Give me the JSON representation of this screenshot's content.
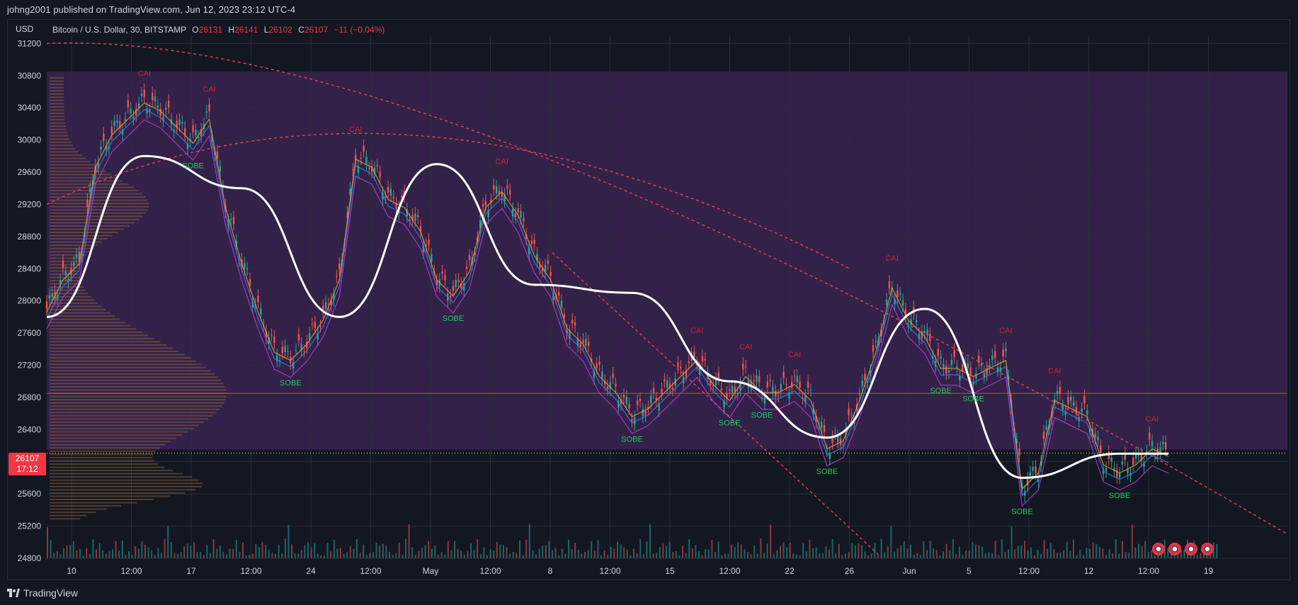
{
  "header": {
    "published": "johng2001 published on TradingView.com, Jun 12, 2023 23:12 UTC-4"
  },
  "legend": {
    "currency": "USD",
    "symbol": "Bitcoin / U.S. Dollar, 30, BITSTAMP",
    "o_label": "O",
    "o_value": "26131",
    "h_label": "H",
    "h_value": "26141",
    "l_label": "L",
    "l_value": "26102",
    "c_label": "C",
    "c_value": "26107",
    "change": "−11 (−0.04%)"
  },
  "price_tag": {
    "price": "26107",
    "countdown": "17:12"
  },
  "footer": {
    "brand": "TradingView"
  },
  "colors": {
    "background": "#131722",
    "zone": "#3a2350",
    "up": "#26a69a",
    "down": "#ef5350",
    "buy_label": "#22c55e",
    "sell_label": "#d21f3c",
    "curve": "#ffffff",
    "arc": "#e0404d",
    "profile": "#9c6b3c"
  },
  "icons": [
    "us-flag-event-icon",
    "us-flag-event-icon",
    "us-flag-event-icon",
    "us-flag-event-icon"
  ],
  "chart_data": {
    "type": "line",
    "title": "Bitcoin / U.S. Dollar, 30, BITSTAMP",
    "x_labels": [
      "10",
      "12:00",
      "17",
      "12:00",
      "24",
      "12:00",
      "May",
      "12:00",
      "8",
      "12:00",
      "15",
      "12:00",
      "22",
      "26",
      "Jun",
      "5",
      "12:00",
      "12",
      "12:00",
      "19"
    ],
    "y_ticks": [
      24800,
      25200,
      25600,
      26000,
      26400,
      26800,
      27200,
      27600,
      28000,
      28400,
      28800,
      29200,
      29600,
      30000,
      30400,
      30800,
      31200
    ],
    "ylim": [
      24800,
      31300
    ],
    "buy_label": "SOBE",
    "sell_label": "CAI",
    "series": [
      {
        "name": "",
        "x_index": [
          0,
          1,
          2,
          3,
          4,
          5,
          6,
          7,
          8,
          9,
          10,
          11,
          12,
          13,
          14,
          15,
          16,
          17,
          18,
          19,
          20,
          21,
          22,
          23,
          24,
          25,
          26,
          27,
          28,
          29,
          30,
          31,
          32,
          33,
          34,
          35,
          36,
          37,
          38,
          39,
          40,
          41,
          42,
          43,
          44,
          45,
          46,
          47,
          48,
          49,
          50,
          51,
          52,
          53,
          54,
          55,
          56,
          57,
          58,
          59,
          60,
          61,
          62,
          63,
          64,
          65,
          66,
          67,
          68,
          69
        ],
        "close": [
          27900,
          28300,
          28500,
          29700,
          30100,
          30300,
          30500,
          30400,
          30200,
          30000,
          30300,
          29200,
          28500,
          27900,
          27400,
          27300,
          27500,
          27800,
          28300,
          29800,
          29700,
          29300,
          29200,
          28900,
          28300,
          28100,
          28400,
          29200,
          29400,
          29100,
          28600,
          28300,
          27700,
          27500,
          27100,
          26900,
          26600,
          26700,
          26900,
          27100,
          27300,
          27000,
          26800,
          27100,
          26900,
          26900,
          27000,
          26800,
          26200,
          26300,
          26800,
          27400,
          28200,
          27800,
          27600,
          27200,
          27200,
          27100,
          27200,
          27300,
          25700,
          25900,
          26800,
          26700,
          26600,
          26000,
          25900,
          26000,
          26200,
          26107
        ]
      },
      {
        "name": "",
        "x_index": [
          0,
          6,
          12,
          18,
          24,
          30,
          36,
          42,
          48,
          54,
          60,
          66,
          69
        ],
        "close": [
          27800,
          29800,
          29400,
          27800,
          29700,
          28200,
          28100,
          27000,
          26300,
          27900,
          25800,
          26100,
          26100
        ]
      }
    ],
    "volume_profile_peak": 26850,
    "current_price": 26107
  }
}
